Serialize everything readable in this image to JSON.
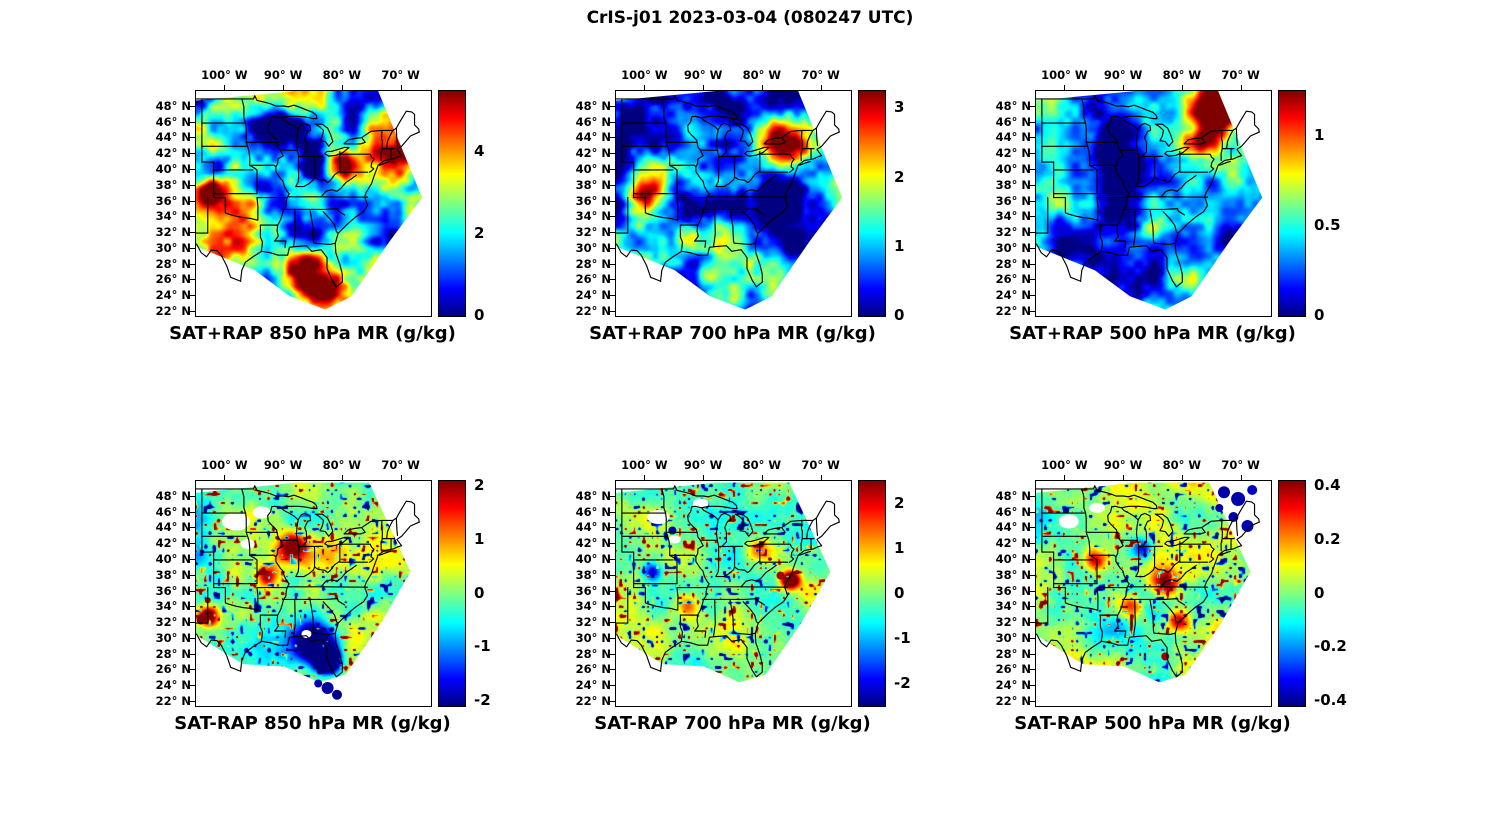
{
  "title": "CrIS-j01 2023-03-04 (080247 UTC)",
  "axes": {
    "lon_tick_labels": [
      "100° W",
      "90° W",
      "80° W",
      "70° W"
    ],
    "lon_tick_values": [
      -100,
      -90,
      -80,
      -70
    ],
    "lat_tick_labels": [
      "48° N",
      "46° N",
      "44° N",
      "42° N",
      "40° N",
      "38° N",
      "36° N",
      "34° N",
      "32° N",
      "30° N",
      "28° N",
      "26° N",
      "24° N",
      "22° N"
    ],
    "lat_tick_values": [
      48,
      46,
      44,
      42,
      40,
      38,
      36,
      34,
      32,
      30,
      28,
      26,
      24,
      22
    ],
    "lon_range": [
      -105,
      -65
    ],
    "lat_range": [
      21.5,
      50
    ]
  },
  "panels": [
    {
      "title": "SAT+RAP 850 hPa MR (g/kg)",
      "colorbar": {
        "min": 0,
        "max": 5.5,
        "tick_values": [
          0,
          2,
          4
        ],
        "tick_labels": [
          "0",
          "2",
          "4"
        ]
      }
    },
    {
      "title": "SAT+RAP 700 hPa MR (g/kg)",
      "colorbar": {
        "min": 0,
        "max": 3.25,
        "tick_values": [
          0,
          1,
          2,
          3
        ],
        "tick_labels": [
          "0",
          "1",
          "2",
          "3"
        ]
      }
    },
    {
      "title": "SAT+RAP 500 hPa MR (g/kg)",
      "colorbar": {
        "min": 0,
        "max": 1.25,
        "tick_values": [
          0,
          0.5,
          1
        ],
        "tick_labels": [
          "0",
          "0.5",
          "1"
        ]
      }
    },
    {
      "title": "SAT-RAP 850 hPa MR (g/kg)",
      "colorbar": {
        "min": -2.1,
        "max": 2.1,
        "tick_values": [
          -2,
          -1,
          0,
          1,
          2
        ],
        "tick_labels": [
          "-2",
          "-1",
          "0",
          "1",
          "2"
        ]
      }
    },
    {
      "title": "SAT-RAP 700 hPa MR (g/kg)",
      "colorbar": {
        "min": -2.5,
        "max": 2.5,
        "tick_values": [
          -2,
          -1,
          0,
          1,
          2
        ],
        "tick_labels": [
          "-2",
          "-1",
          "0",
          "1",
          "2"
        ]
      }
    },
    {
      "title": "SAT-RAP 500 hPa MR (g/kg)",
      "colorbar": {
        "min": -0.42,
        "max": 0.42,
        "tick_values": [
          -0.4,
          -0.2,
          0,
          0.2,
          0.4
        ],
        "tick_labels": [
          "-0.4",
          "-0.2",
          "0",
          "0.2",
          "0.4"
        ]
      }
    }
  ],
  "chart_data": [
    {
      "type": "heatmap",
      "title": "SAT+RAP 850 hPa MR (g/kg)",
      "quantity": "mixing ratio",
      "units": "g/kg",
      "pressure_level_hPa": 850,
      "colormap": "jet",
      "value_range": [
        0,
        5.5
      ],
      "colorbar_ticks": [
        0,
        2,
        4
      ],
      "x_range_lon_deg": [
        -105,
        -65
      ],
      "y_range_lat_deg": [
        21.5,
        50
      ],
      "x_ticks_lon_deg": [
        -100,
        -90,
        -80,
        -70
      ],
      "y_ticks_lat_deg": [
        48,
        46,
        44,
        42,
        40,
        38,
        36,
        34,
        32,
        30,
        28,
        26,
        24,
        22
      ],
      "legend_position": "right-colorbar",
      "grid": false
    },
    {
      "type": "heatmap",
      "title": "SAT+RAP 700 hPa MR (g/kg)",
      "quantity": "mixing ratio",
      "units": "g/kg",
      "pressure_level_hPa": 700,
      "colormap": "jet",
      "value_range": [
        0,
        3.25
      ],
      "colorbar_ticks": [
        0,
        1,
        2,
        3
      ],
      "x_range_lon_deg": [
        -105,
        -65
      ],
      "y_range_lat_deg": [
        21.5,
        50
      ],
      "x_ticks_lon_deg": [
        -100,
        -90,
        -80,
        -70
      ],
      "y_ticks_lat_deg": [
        48,
        46,
        44,
        42,
        40,
        38,
        36,
        34,
        32,
        30,
        28,
        26,
        24,
        22
      ],
      "legend_position": "right-colorbar",
      "grid": false
    },
    {
      "type": "heatmap",
      "title": "SAT+RAP 500 hPa MR (g/kg)",
      "quantity": "mixing ratio",
      "units": "g/kg",
      "pressure_level_hPa": 500,
      "colormap": "jet",
      "value_range": [
        0,
        1.25
      ],
      "colorbar_ticks": [
        0,
        0.5,
        1
      ],
      "x_range_lon_deg": [
        -105,
        -65
      ],
      "y_range_lat_deg": [
        21.5,
        50
      ],
      "x_ticks_lon_deg": [
        -100,
        -90,
        -80,
        -70
      ],
      "y_ticks_lat_deg": [
        48,
        46,
        44,
        42,
        40,
        38,
        36,
        34,
        32,
        30,
        28,
        26,
        24,
        22
      ],
      "legend_position": "right-colorbar",
      "grid": false
    },
    {
      "type": "heatmap",
      "title": "SAT-RAP 850 hPa MR (g/kg)",
      "quantity": "mixing ratio difference",
      "units": "g/kg",
      "pressure_level_hPa": 850,
      "colormap": "jet",
      "value_range": [
        -2.1,
        2.1
      ],
      "colorbar_ticks": [
        -2,
        -1,
        0,
        1,
        2
      ],
      "x_range_lon_deg": [
        -105,
        -65
      ],
      "y_range_lat_deg": [
        21.5,
        50
      ],
      "x_ticks_lon_deg": [
        -100,
        -90,
        -80,
        -70
      ],
      "y_ticks_lat_deg": [
        48,
        46,
        44,
        42,
        40,
        38,
        36,
        34,
        32,
        30,
        28,
        26,
        24,
        22
      ],
      "legend_position": "right-colorbar",
      "grid": false
    },
    {
      "type": "heatmap",
      "title": "SAT-RAP 700 hPa MR (g/kg)",
      "quantity": "mixing ratio difference",
      "units": "g/kg",
      "pressure_level_hPa": 700,
      "colormap": "jet",
      "value_range": [
        -2.5,
        2.5
      ],
      "colorbar_ticks": [
        -2,
        -1,
        0,
        1,
        2
      ],
      "x_range_lon_deg": [
        -105,
        -65
      ],
      "y_range_lat_deg": [
        21.5,
        50
      ],
      "x_ticks_lon_deg": [
        -100,
        -90,
        -80,
        -70
      ],
      "y_ticks_lat_deg": [
        48,
        46,
        44,
        42,
        40,
        38,
        36,
        34,
        32,
        30,
        28,
        26,
        24,
        22
      ],
      "legend_position": "right-colorbar",
      "grid": false
    },
    {
      "type": "heatmap",
      "title": "SAT-RAP 500 hPa MR (g/kg)",
      "quantity": "mixing ratio difference",
      "units": "g/kg",
      "pressure_level_hPa": 500,
      "colormap": "jet",
      "value_range": [
        -0.42,
        0.42
      ],
      "colorbar_ticks": [
        -0.4,
        -0.2,
        0,
        0.2,
        0.4
      ],
      "x_range_lon_deg": [
        -105,
        -65
      ],
      "y_range_lat_deg": [
        21.5,
        50
      ],
      "x_ticks_lon_deg": [
        -100,
        -90,
        -80,
        -70
      ],
      "y_ticks_lat_deg": [
        48,
        46,
        44,
        42,
        40,
        38,
        36,
        34,
        32,
        30,
        28,
        26,
        24,
        22
      ],
      "legend_position": "right-colorbar",
      "grid": false
    }
  ]
}
